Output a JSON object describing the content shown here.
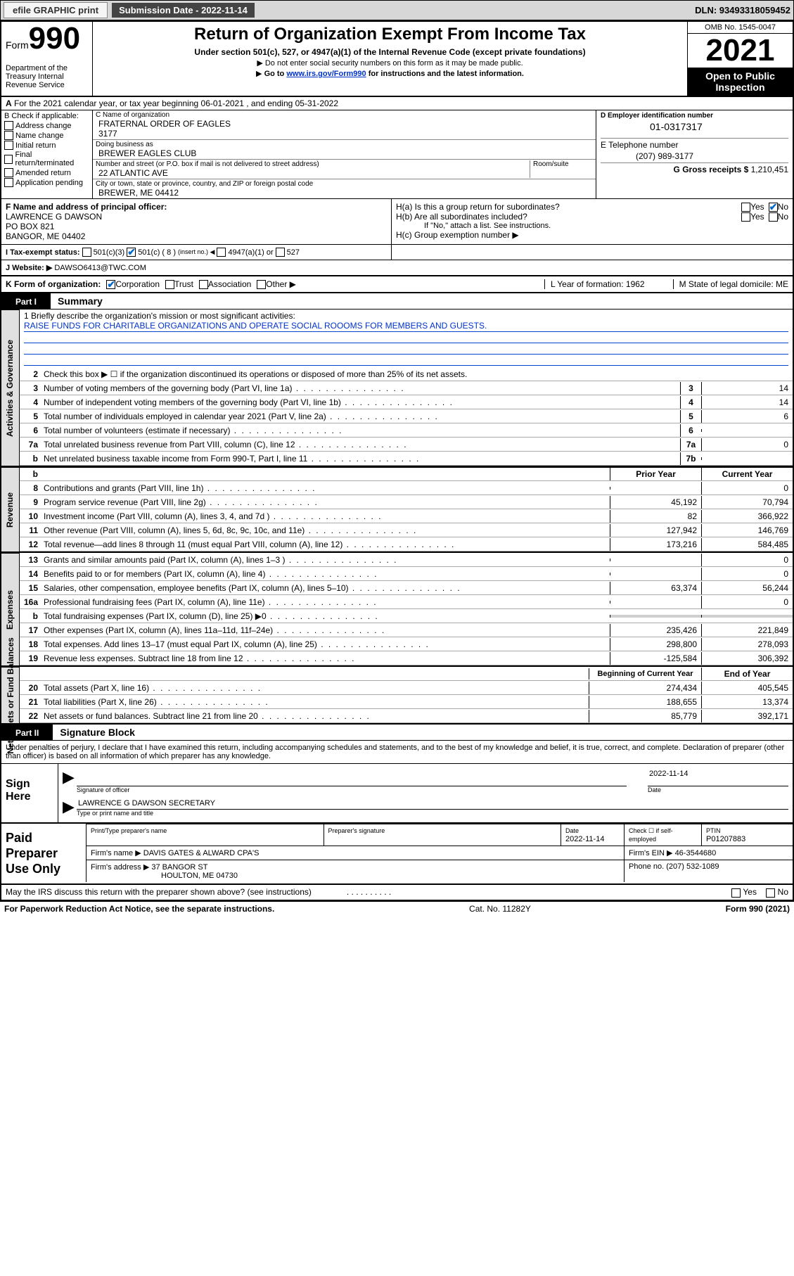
{
  "topbar": {
    "efile_btn": "efile GRAPHIC print",
    "sub_date_lbl": "Submission Date - 2022-11-14",
    "dln": "DLN: 93493318059452"
  },
  "header": {
    "form_prefix": "Form",
    "form_num": "990",
    "dept": "Department of the Treasury Internal Revenue Service",
    "title": "Return of Organization Exempt From Income Tax",
    "sub1": "Under section 501(c), 527, or 4947(a)(1) of the Internal Revenue Code (except private foundations)",
    "sub2a": "Do not enter social security numbers on this form as it may be made public.",
    "sub2b_pre": "Go to ",
    "sub2b_link": "www.irs.gov/Form990",
    "sub2b_post": " for instructions and the latest information.",
    "omb": "OMB No. 1545-0047",
    "year": "2021",
    "open": "Open to Public Inspection"
  },
  "secA": "For the 2021 calendar year, or tax year beginning 06-01-2021   , and ending 05-31-2022",
  "colB": {
    "hdr": "B Check if applicable:",
    "opts": [
      "Address change",
      "Name change",
      "Initial return",
      "Final return/terminated",
      "Amended return",
      "Application pending"
    ]
  },
  "colC": {
    "name_lbl": "C Name of organization",
    "name": "FRATERNAL ORDER OF EAGLES",
    "name2": "3177",
    "dba_lbl": "Doing business as",
    "dba": "BREWER EAGLES CLUB",
    "addr_lbl": "Number and street (or P.O. box if mail is not delivered to street address)",
    "room_lbl": "Room/suite",
    "addr": "22 ATLANTIC AVE",
    "city_lbl": "City or town, state or province, country, and ZIP or foreign postal code",
    "city": "BREWER, ME  04412"
  },
  "colDE": {
    "ein_lbl": "D Employer identification number",
    "ein": "01-0317317",
    "phone_lbl": "E Telephone number",
    "phone": "(207) 989-3177",
    "gross_lbl": "G Gross receipts $",
    "gross": "1,210,451"
  },
  "rowF": {
    "f_lbl": "F Name and address of principal officer:",
    "f_name": "LAWRENCE G DAWSON",
    "f_addr1": "PO BOX 821",
    "f_addr2": "BANGOR, ME  04402",
    "ha": "H(a)  Is this a group return for subordinates?",
    "hb": "H(b)  Are all subordinates included?",
    "hb_note": "If \"No,\" attach a list. See instructions.",
    "hc": "H(c)  Group exemption number ▶"
  },
  "rowI": {
    "lbl": "I   Tax-exempt status:",
    "opt1": "501(c)(3)",
    "opt2": "501(c) ( 8 )",
    "opt2_note": "(insert no.)",
    "opt3": "4947(a)(1) or",
    "opt4": "527"
  },
  "rowJ": {
    "lbl": "J   Website: ▶",
    "val": "DAWSO6413@TWC.COM"
  },
  "rowK": {
    "lbl": "K Form of organization:",
    "opts": [
      "Corporation",
      "Trust",
      "Association",
      "Other ▶"
    ],
    "year_lbl": "L Year of formation: 1962",
    "state_lbl": "M State of legal domicile: ME"
  },
  "part1": {
    "num": "Part I",
    "title": "Summary"
  },
  "mission": {
    "lbl": "1   Briefly describe the organization's mission or most significant activities:",
    "text": "RAISE FUNDS FOR CHARITABLE ORGANIZATIONS AND OPERATE SOCIAL ROOOMS FOR MEMBERS AND GUESTS."
  },
  "gov_rows": [
    {
      "n": "2",
      "d": "Check this box ▶ ☐  if the organization discontinued its operations or disposed of more than 25% of its net assets."
    },
    {
      "n": "3",
      "d": "Number of voting members of the governing body (Part VI, line 1a)",
      "box": "3",
      "v": "14"
    },
    {
      "n": "4",
      "d": "Number of independent voting members of the governing body (Part VI, line 1b)",
      "box": "4",
      "v": "14"
    },
    {
      "n": "5",
      "d": "Total number of individuals employed in calendar year 2021 (Part V, line 2a)",
      "box": "5",
      "v": "6"
    },
    {
      "n": "6",
      "d": "Total number of volunteers (estimate if necessary)",
      "box": "6",
      "v": ""
    },
    {
      "n": "7a",
      "d": "Total unrelated business revenue from Part VIII, column (C), line 12",
      "box": "7a",
      "v": "0"
    },
    {
      "n": "b",
      "d": "Net unrelated business taxable income from Form 990-T, Part I, line 11",
      "box": "7b",
      "v": ""
    }
  ],
  "fin_hdr": {
    "prior": "Prior Year",
    "curr": "Current Year"
  },
  "rev_rows": [
    {
      "n": "8",
      "d": "Contributions and grants (Part VIII, line 1h)",
      "p": "",
      "c": "0"
    },
    {
      "n": "9",
      "d": "Program service revenue (Part VIII, line 2g)",
      "p": "45,192",
      "c": "70,794"
    },
    {
      "n": "10",
      "d": "Investment income (Part VIII, column (A), lines 3, 4, and 7d )",
      "p": "82",
      "c": "366,922"
    },
    {
      "n": "11",
      "d": "Other revenue (Part VIII, column (A), lines 5, 6d, 8c, 9c, 10c, and 11e)",
      "p": "127,942",
      "c": "146,769"
    },
    {
      "n": "12",
      "d": "Total revenue—add lines 8 through 11 (must equal Part VIII, column (A), line 12)",
      "p": "173,216",
      "c": "584,485"
    }
  ],
  "exp_rows": [
    {
      "n": "13",
      "d": "Grants and similar amounts paid (Part IX, column (A), lines 1–3 )",
      "p": "",
      "c": "0"
    },
    {
      "n": "14",
      "d": "Benefits paid to or for members (Part IX, column (A), line 4)",
      "p": "",
      "c": "0"
    },
    {
      "n": "15",
      "d": "Salaries, other compensation, employee benefits (Part IX, column (A), lines 5–10)",
      "p": "63,374",
      "c": "56,244"
    },
    {
      "n": "16a",
      "d": "Professional fundraising fees (Part IX, column (A), line 11e)",
      "p": "",
      "c": "0"
    },
    {
      "n": "b",
      "d": "Total fundraising expenses (Part IX, column (D), line 25) ▶0",
      "p": "shade",
      "c": "shade"
    },
    {
      "n": "17",
      "d": "Other expenses (Part IX, column (A), lines 11a–11d, 11f–24e)",
      "p": "235,426",
      "c": "221,849"
    },
    {
      "n": "18",
      "d": "Total expenses. Add lines 13–17 (must equal Part IX, column (A), line 25)",
      "p": "298,800",
      "c": "278,093"
    },
    {
      "n": "19",
      "d": "Revenue less expenses. Subtract line 18 from line 12",
      "p": "-125,584",
      "c": "306,392"
    }
  ],
  "na_hdr": {
    "beg": "Beginning of Current Year",
    "end": "End of Year"
  },
  "na_rows": [
    {
      "n": "20",
      "d": "Total assets (Part X, line 16)",
      "p": "274,434",
      "c": "405,545"
    },
    {
      "n": "21",
      "d": "Total liabilities (Part X, line 26)",
      "p": "188,655",
      "c": "13,374"
    },
    {
      "n": "22",
      "d": "Net assets or fund balances. Subtract line 21 from line 20",
      "p": "85,779",
      "c": "392,171"
    }
  ],
  "part2": {
    "num": "Part II",
    "title": "Signature Block"
  },
  "penalty": "Under penalties of perjury, I declare that I have examined this return, including accompanying schedules and statements, and to the best of my knowledge and belief, it is true, correct, and complete. Declaration of preparer (other than officer) is based on all information of which preparer has any knowledge.",
  "sign": {
    "here": "Sign Here",
    "sig_lbl": "Signature of officer",
    "date_lbl": "Date",
    "date": "2022-11-14",
    "name": "LAWRENCE G DAWSON  SECRETARY",
    "name_lbl": "Type or print name and title"
  },
  "paid": {
    "lbl": "Paid Preparer Use Only",
    "r1": {
      "c1": "Print/Type preparer's name",
      "c2": "Preparer's signature",
      "c3": "Date",
      "c3v": "2022-11-14",
      "c4": "Check ☐ if self-employed",
      "c5": "PTIN",
      "c5v": "P01207883"
    },
    "r2": {
      "lbl": "Firm's name    ▶",
      "v": "DAVIS GATES & ALWARD CPA'S",
      "ein_lbl": "Firm's EIN ▶",
      "ein": "46-3544680"
    },
    "r3": {
      "lbl": "Firm's address ▶",
      "v1": "37 BANGOR ST",
      "v2": "HOULTON, ME  04730",
      "ph_lbl": "Phone no.",
      "ph": "(207) 532-1089"
    }
  },
  "discuss": "May the IRS discuss this return with the preparer shown above? (see instructions)",
  "footer": {
    "l": "For Paperwork Reduction Act Notice, see the separate instructions.",
    "m": "Cat. No. 11282Y",
    "r": "Form 990 (2021)"
  },
  "vtabs": {
    "gov": "Activities & Governance",
    "rev": "Revenue",
    "exp": "Expenses",
    "na": "Net Assets or Fund Balances"
  }
}
